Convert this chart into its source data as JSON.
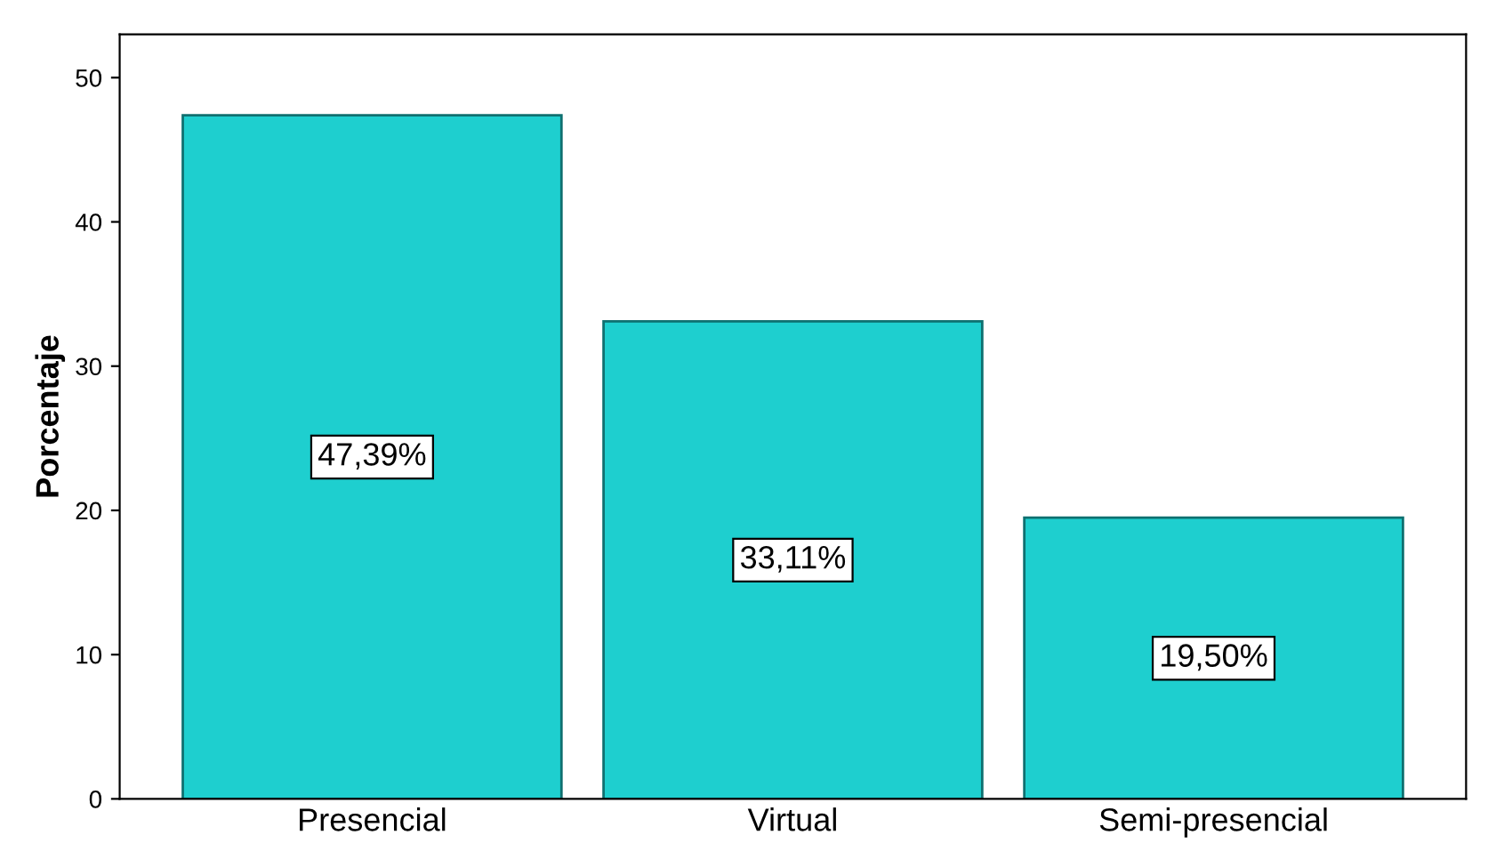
{
  "chart_data": {
    "type": "bar",
    "ylabel": "Porcentaje",
    "categories": [
      "Presencial",
      "Virtual",
      "Semi-presencial"
    ],
    "values": [
      47.39,
      33.11,
      19.5
    ],
    "value_labels": [
      "47,39%",
      "33,11%",
      "19,50%"
    ],
    "color": "#1ecfcf",
    "ylim": [
      0,
      53
    ],
    "yticks": [
      0,
      10,
      20,
      30,
      40,
      50
    ],
    "grid": false
  }
}
